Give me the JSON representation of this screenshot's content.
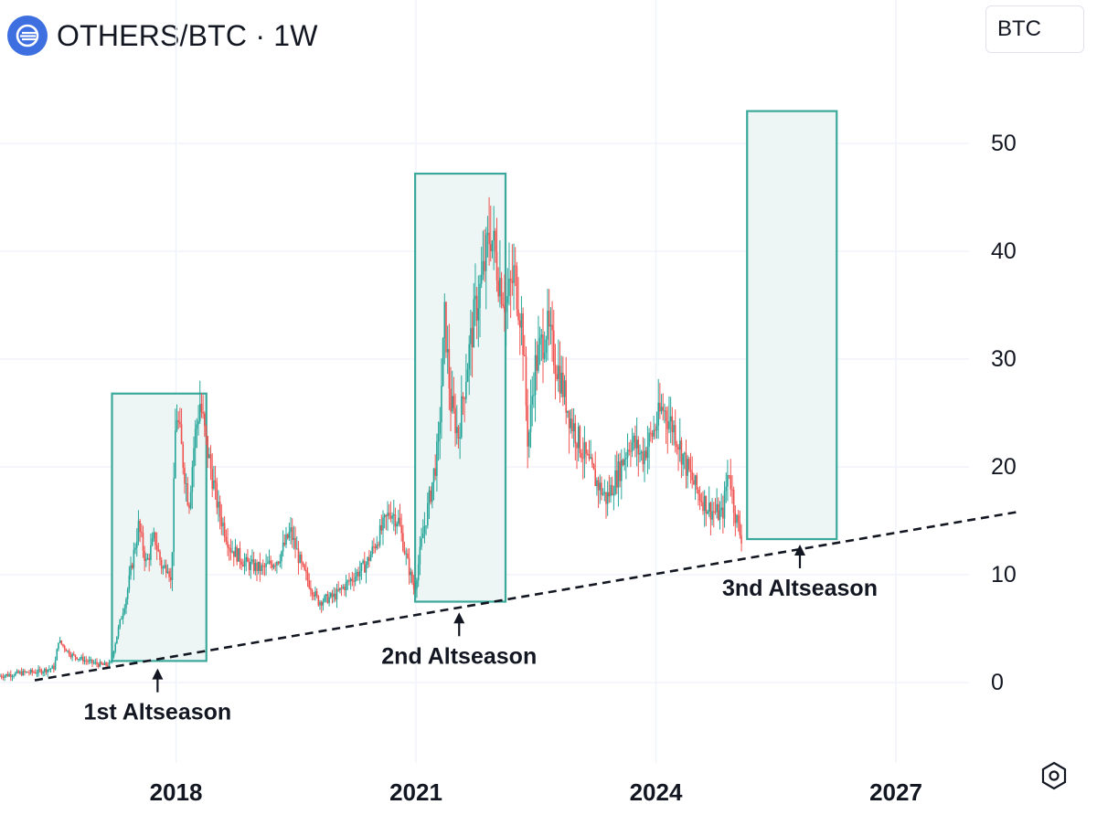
{
  "header": {
    "symbol_title": "OTHERS/BTC · 1W",
    "logo_icon": "exchange-logo-icon",
    "unit_button_label": "BTC"
  },
  "chart_data": {
    "type": "candlestick",
    "title": "OTHERS/BTC · 1W",
    "xlabel": "",
    "ylabel": "",
    "x_ticks": [
      "2018",
      "2021",
      "2024",
      "2027"
    ],
    "y_ticks": [
      "50",
      "40",
      "30",
      "20",
      "10",
      "0"
    ],
    "ylim": [
      -9,
      63
    ],
    "xlim": [
      2015.8,
      2028.6
    ],
    "grid": true,
    "colors": {
      "up": "#26a69a",
      "down": "#ef5350",
      "box": "#3aa89a",
      "box_fill": "#eef6f5",
      "trendline": "#131722"
    },
    "series": [
      {
        "values_approx": [
          [
            2015.8,
            0.6
          ],
          [
            2016.1,
            0.9
          ],
          [
            2016.3,
            1.0
          ],
          [
            2016.5,
            1.4
          ],
          [
            2016.55,
            3.9
          ],
          [
            2016.7,
            2.6
          ],
          [
            2016.9,
            2.0
          ],
          [
            2017.1,
            1.6
          ],
          [
            2017.2,
            1.7
          ],
          [
            2017.3,
            5.0
          ],
          [
            2017.4,
            8.0
          ],
          [
            2017.55,
            14.5
          ],
          [
            2017.65,
            11.0
          ],
          [
            2017.75,
            13.5
          ],
          [
            2017.85,
            10.5
          ],
          [
            2017.92,
            11.0
          ],
          [
            2017.96,
            9.0
          ],
          [
            2018.02,
            25.5
          ],
          [
            2018.1,
            21.0
          ],
          [
            2018.18,
            16.5
          ],
          [
            2018.25,
            22.5
          ],
          [
            2018.32,
            26.0
          ],
          [
            2018.4,
            22.0
          ],
          [
            2018.55,
            16.0
          ],
          [
            2018.7,
            12.5
          ],
          [
            2018.9,
            11.0
          ],
          [
            2019.1,
            10.5
          ],
          [
            2019.3,
            11.5
          ],
          [
            2019.45,
            14.0
          ],
          [
            2019.6,
            10.5
          ],
          [
            2019.8,
            7.5
          ],
          [
            2020.0,
            8.0
          ],
          [
            2020.2,
            9.5
          ],
          [
            2020.4,
            11.0
          ],
          [
            2020.55,
            13.5
          ],
          [
            2020.7,
            16.0
          ],
          [
            2020.8,
            15.0
          ],
          [
            2020.9,
            11.5
          ],
          [
            2020.95,
            10.0
          ],
          [
            2021.0,
            8.5
          ],
          [
            2021.1,
            13.5
          ],
          [
            2021.2,
            17.5
          ],
          [
            2021.3,
            22.0
          ],
          [
            2021.38,
            34.0
          ],
          [
            2021.45,
            26.0
          ],
          [
            2021.55,
            23.0
          ],
          [
            2021.65,
            29.0
          ],
          [
            2021.75,
            34.0
          ],
          [
            2021.85,
            37.5
          ],
          [
            2021.95,
            42.0
          ],
          [
            2022.05,
            38.0
          ],
          [
            2022.15,
            35.0
          ],
          [
            2022.25,
            38.0
          ],
          [
            2022.35,
            33.0
          ],
          [
            2022.42,
            22.0
          ],
          [
            2022.5,
            29.0
          ],
          [
            2022.65,
            33.0
          ],
          [
            2022.8,
            29.0
          ],
          [
            2022.95,
            24.5
          ],
          [
            2023.1,
            21.5
          ],
          [
            2023.25,
            19.0
          ],
          [
            2023.4,
            17.0
          ],
          [
            2023.55,
            19.5
          ],
          [
            2023.7,
            22.5
          ],
          [
            2023.85,
            21.0
          ],
          [
            2024.0,
            23.5
          ],
          [
            2024.1,
            25.5
          ],
          [
            2024.25,
            23.5
          ],
          [
            2024.4,
            20.0
          ],
          [
            2024.55,
            17.5
          ],
          [
            2024.7,
            16.0
          ],
          [
            2024.85,
            15.5
          ],
          [
            2024.93,
            20.0
          ],
          [
            2025.0,
            16.0
          ],
          [
            2025.08,
            13.5
          ]
        ]
      }
    ],
    "trendline_approx": {
      "x": [
        2015.8,
        2029.0
      ],
      "y": [
        0.1,
        15.9
      ]
    },
    "highlight_boxes": [
      {
        "x0": 2017.2,
        "x1": 2018.38,
        "y_low": 2.0,
        "y_high": 26.8
      },
      {
        "x0": 2020.99,
        "x1": 2022.12,
        "y_low": 7.5,
        "y_high": 47.2
      },
      {
        "x0": 2025.14,
        "x1": 2026.26,
        "y_low": 13.3,
        "y_high": 53.0
      }
    ],
    "annotations": [
      {
        "text": "1st Altseason",
        "x": 2017.77,
        "y_arrow": 1.3
      },
      {
        "text": "2nd Altseason",
        "x": 2021.54,
        "y_arrow": 6.5
      },
      {
        "text": "3nd Altseason",
        "x": 2025.8,
        "y_arrow": 12.8
      }
    ]
  },
  "footer": {
    "settings_icon": "settings-hexagon-icon"
  }
}
